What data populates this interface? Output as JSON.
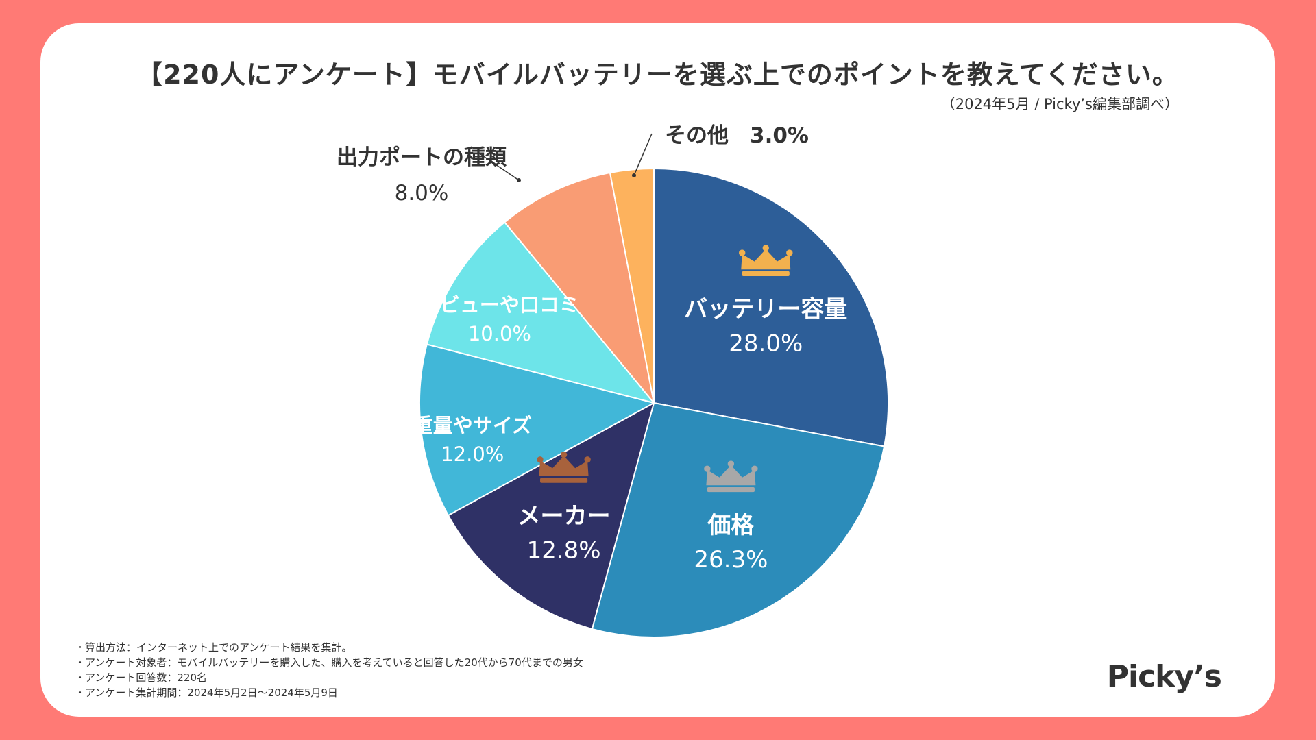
{
  "chart_data": {
    "type": "pie",
    "title": "【220人にアンケート】モバイルバッテリーを選ぶ上でのポイントを教えてください。",
    "source": "（2024年5月 / Picky’s編集部調べ）",
    "slices": [
      {
        "label": "バッテリー容量",
        "value": 28.0,
        "display": "28.0%",
        "color": "#2D5E98",
        "text_color": "#ffffff",
        "crown": "#F2B14E"
      },
      {
        "label": "価格",
        "value": 26.3,
        "display": "26.3%",
        "color": "#2C8CBA",
        "text_color": "#ffffff",
        "crown": "#A8A8A8"
      },
      {
        "label": "メーカー",
        "value": 12.8,
        "display": "12.8%",
        "color": "#2F3166",
        "text_color": "#ffffff",
        "crown": "#A8623C"
      },
      {
        "label": "重量やサイズ",
        "value": 12.0,
        "display": "12.0%",
        "color": "#41B7D8",
        "text_color": "#ffffff"
      },
      {
        "label": "レビューや口コミ",
        "value": 10.0,
        "display": "10.0%",
        "color": "#6DE4E9",
        "text_color": "#ffffff"
      },
      {
        "label": "出力ポートの種類",
        "value": 8.0,
        "display": "8.0%",
        "color": "#F99C74",
        "text_color": "#333333",
        "outside": true
      },
      {
        "label": "その他",
        "value": 3.0,
        "display": "3.0%",
        "color": "#FDB25D",
        "text_color": "#333333",
        "outside": true
      }
    ]
  },
  "notes": [
    "・算出方法：インターネット上でのアンケート結果を集計。",
    "・アンケート対象者：モバイルバッテリーを購入した、購入を考えていると回答した20代から70代までの男女",
    "・アンケート回答数：220名",
    "・アンケート集計期間：2024年5月2日〜2024年5月9日"
  ],
  "logo": "Picky’s"
}
